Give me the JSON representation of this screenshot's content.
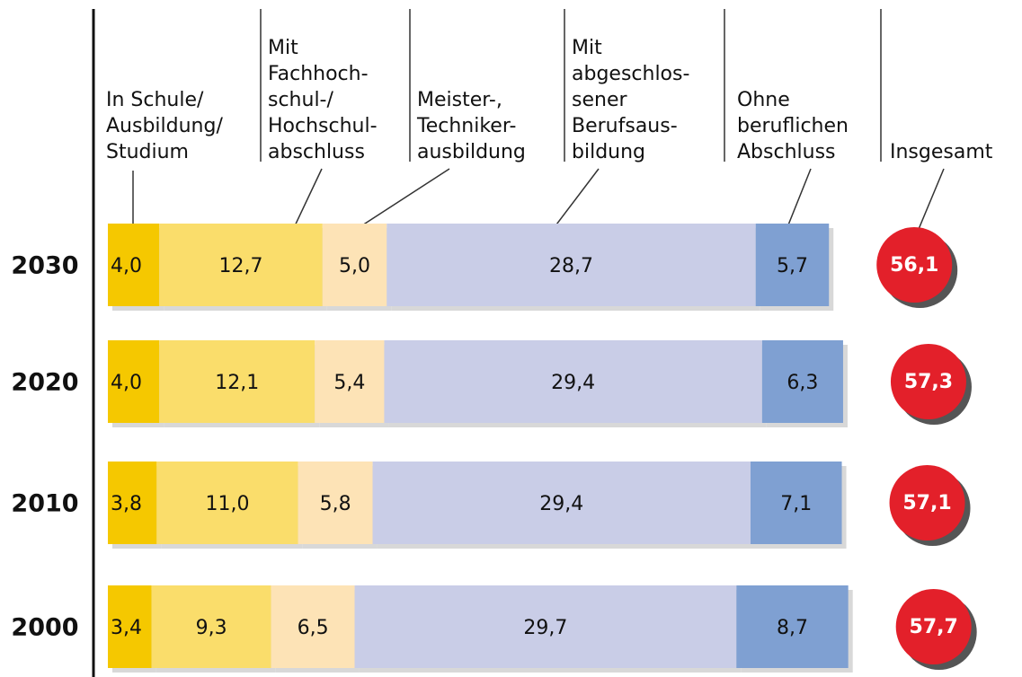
{
  "chart_data": {
    "type": "stacked-bar",
    "orientation": "horizontal",
    "categories": [
      "2030",
      "2020",
      "2010",
      "2000"
    ],
    "xlim": [
      0,
      60
    ],
    "series": [
      {
        "name": "In Schule/\nAusbildung/\nStudium",
        "color": "#f5c800",
        "values": [
          4.0,
          4.0,
          3.8,
          3.4
        ],
        "value_labels": [
          "4,0",
          "4,0",
          "3,8",
          "3,4"
        ]
      },
      {
        "name": "Mit\nFachhoch-\nschul-/\nHochschul-\nabschluss",
        "color": "#fadd6b",
        "values": [
          12.7,
          12.1,
          11.0,
          9.3
        ],
        "value_labels": [
          "12,7",
          "12,1",
          "11,0",
          "9,3"
        ]
      },
      {
        "name": "Meister-,\nTechniker-\nausbildung",
        "color": "#fde3b6",
        "values": [
          5.0,
          5.4,
          5.8,
          6.5
        ],
        "value_labels": [
          "5,0",
          "5,4",
          "5,8",
          "6,5"
        ]
      },
      {
        "name": "Mit\nabgeschlos-\nsener\nBerufsaus-\nbildung",
        "color": "#c9cde7",
        "values": [
          28.7,
          29.4,
          29.4,
          29.7
        ],
        "value_labels": [
          "28,7",
          "29,4",
          "29,4",
          "29,7"
        ]
      },
      {
        "name": "Ohne\nberuflichen\nAbschluss",
        "color": "#7fa0d2",
        "values": [
          5.7,
          6.3,
          7.1,
          8.7
        ],
        "value_labels": [
          "5,7",
          "6,3",
          "7,1",
          "8,7"
        ]
      }
    ],
    "total": {
      "name": "Insgesamt",
      "color": "#e3202a",
      "values": [
        56.1,
        57.3,
        57.1,
        57.7
      ],
      "value_labels": [
        "56,1",
        "57,3",
        "57,1",
        "57,7"
      ]
    }
  }
}
